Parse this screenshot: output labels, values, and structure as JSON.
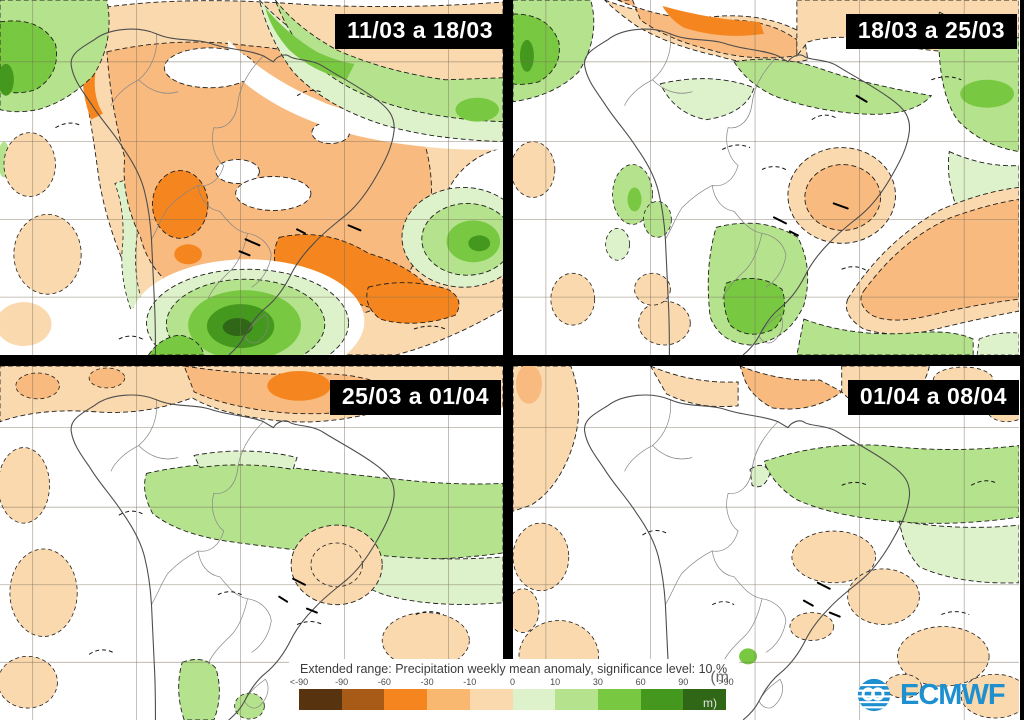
{
  "panels": [
    {
      "label": "11/03 a 18/03"
    },
    {
      "label": "18/03 a 25/03"
    },
    {
      "label": "25/03 a 01/04"
    },
    {
      "label": "01/04 a 08/04"
    }
  ],
  "legend": {
    "title": "Extended range: Precipitation weekly mean anomaly, significance level: 10 %",
    "unit_top": "(m",
    "unit_bottom": "m)",
    "ticks": [
      "<-90",
      "-90",
      "-60",
      "-30",
      "-10",
      "0",
      "10",
      "30",
      "60",
      "90",
      ">90"
    ],
    "colors": [
      "#57330f",
      "#a85a17",
      "#f5861f",
      "#f9b870",
      "#fbd9ae",
      "#ddf1ca",
      "#b5e28c",
      "#79c842",
      "#44981d",
      "#2f6716"
    ]
  },
  "logo": {
    "text": "ECMWF"
  },
  "palette": {
    "peach": "#fbd9ae",
    "orange_light": "#f8ba7e",
    "orange_strong": "#f5861f",
    "green_pale": "#ddf1ca",
    "green_light": "#b5e28c",
    "green_mid": "#79c842",
    "green_dark": "#44981d",
    "green_darkest": "#2f6716",
    "logo_color": "#1e90cf"
  }
}
